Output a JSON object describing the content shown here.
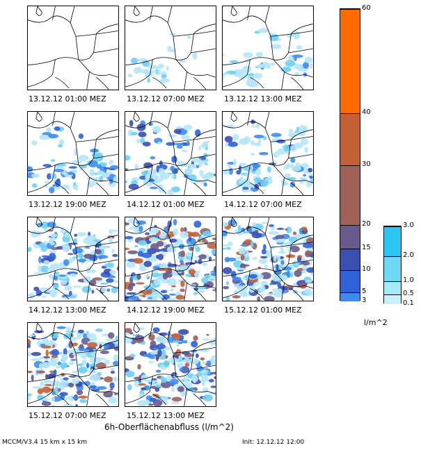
{
  "chart_data": {
    "type": "heatmap",
    "title": "6h-Oberflächenabfluss (l/m^2)",
    "panels": [
      {
        "label": "13.12.12 01:00 MEZ",
        "intensity": 0
      },
      {
        "label": "13.12.12 07:00 MEZ",
        "intensity": 1
      },
      {
        "label": "13.12.12 13:00 MEZ",
        "intensity": 2
      },
      {
        "label": "13.12.12 19:00 MEZ",
        "intensity": 3
      },
      {
        "label": "14.12.12 01:00 MEZ",
        "intensity": 4
      },
      {
        "label": "14.12.12 07:00 MEZ",
        "intensity": 4
      },
      {
        "label": "14.12.12 13:00 MEZ",
        "intensity": 6
      },
      {
        "label": "14.12.12 19:00 MEZ",
        "intensity": 9
      },
      {
        "label": "15.12.12 01:00 MEZ",
        "intensity": 8
      },
      {
        "label": "15.12.12 07:00 MEZ",
        "intensity": 8
      },
      {
        "label": "15.12.12 13:00 MEZ",
        "intensity": 7
      }
    ],
    "main_colorbar": {
      "levels": [
        "3",
        "5",
        "10",
        "15",
        "20",
        "30",
        "40",
        "60"
      ],
      "colors": [
        "#3c8cf0",
        "#2f62d8",
        "#3a4fb0",
        "#6a5a8c",
        "#a0605a",
        "#c46034",
        "#ff6a00"
      ]
    },
    "small_colorbar": {
      "levels": [
        "0.1",
        "0.5",
        "1.0",
        "2.0",
        "3.0"
      ],
      "colors": [
        "#c8f2fb",
        "#a6eaf8",
        "#6fd8f4",
        "#2cc4f0"
      ]
    },
    "unit": "l/m^2"
  },
  "footer": {
    "model": "MCCM/V3.4 15 km x 15 km",
    "init": "Init: 12.12.12 12:00"
  }
}
